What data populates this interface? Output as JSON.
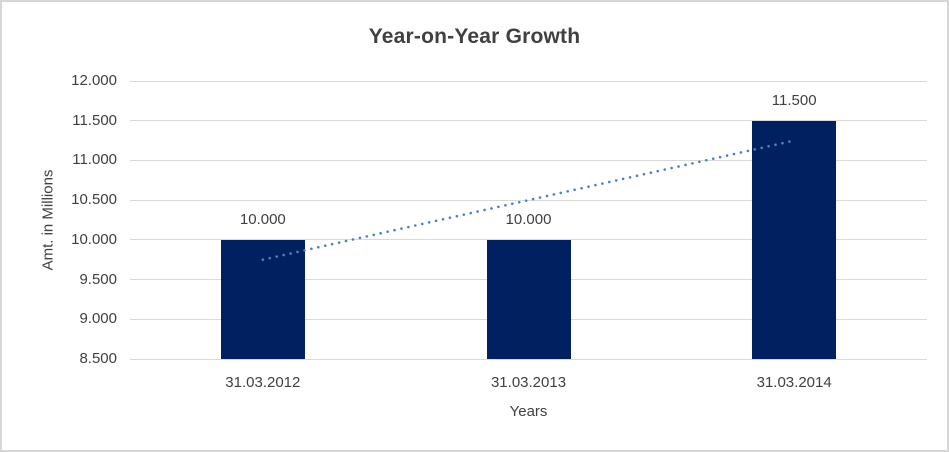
{
  "chart_data": {
    "type": "bar",
    "title": "Year-on-Year Growth",
    "xlabel": "Years",
    "ylabel": "Amt. in Millions",
    "categories": [
      "31.03.2012",
      "31.03.2013",
      "31.03.2014"
    ],
    "values": [
      10000,
      10000,
      11500
    ],
    "value_labels": [
      "10.000",
      "10.000",
      "11.500"
    ],
    "ylim": [
      8500,
      12000
    ],
    "ytick_step": 500,
    "ytick_labels": [
      "8.500",
      "9.000",
      "9.500",
      "10.000",
      "10.500",
      "11.000",
      "11.500",
      "12.000"
    ],
    "grid": "horizontal",
    "legend": "none",
    "bar_color": "#002060",
    "trendline": {
      "type": "linear",
      "style": "dotted",
      "color": "#4e81bd",
      "start_value": 9750,
      "end_value": 11250
    }
  }
}
